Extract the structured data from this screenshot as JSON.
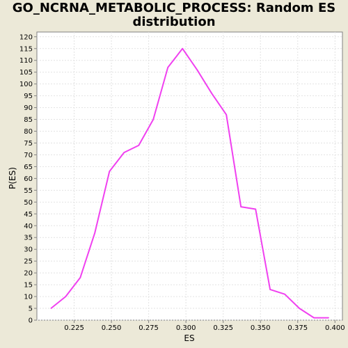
{
  "chart_data": {
    "type": "line",
    "title_line1": "GO_NCRNA_METABOLIC_PROCESS: Random ES",
    "title_line2": "distribution",
    "xlabel": "ES",
    "ylabel": "P(ES)",
    "xlim": [
      0.2,
      0.405
    ],
    "ylim": [
      0,
      122
    ],
    "x_ticks": [
      0.225,
      0.25,
      0.275,
      0.3,
      0.325,
      0.35,
      0.375,
      0.4
    ],
    "x_tick_labels": [
      "0.225",
      "0.250",
      "0.275",
      "0.300",
      "0.325",
      "0.350",
      "0.375",
      "0.400"
    ],
    "y_ticks": [
      0,
      5,
      10,
      15,
      20,
      25,
      30,
      35,
      40,
      45,
      50,
      55,
      60,
      65,
      70,
      75,
      80,
      85,
      90,
      95,
      100,
      105,
      110,
      115,
      120
    ],
    "grid": true,
    "series": [
      {
        "color": "#f040f0",
        "x": [
          0.2095,
          0.2193,
          0.2291,
          0.2389,
          0.2487,
          0.2585,
          0.2683,
          0.2781,
          0.2879,
          0.2977,
          0.3075,
          0.3173,
          0.3271,
          0.3369,
          0.3467,
          0.3565,
          0.3663,
          0.3761,
          0.3859,
          0.3957
        ],
        "y": [
          5,
          10,
          18,
          37,
          63,
          71,
          74,
          85,
          107,
          115,
          106,
          96,
          87,
          48,
          47,
          13,
          11,
          5,
          1,
          1
        ]
      }
    ]
  }
}
